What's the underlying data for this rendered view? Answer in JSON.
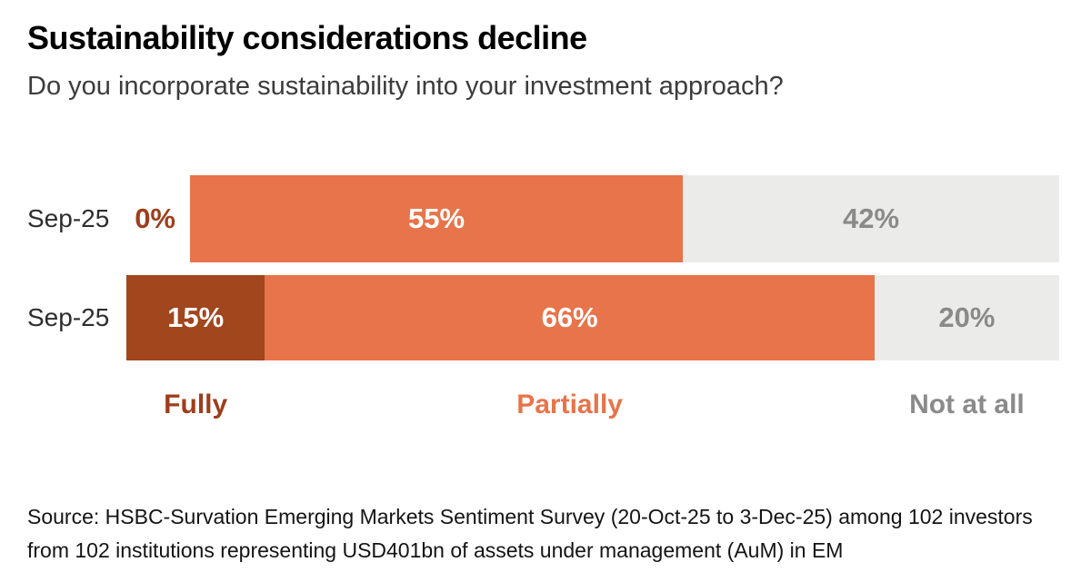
{
  "header": {
    "title": "Sustainability considerations decline",
    "subtitle": "Do you incorporate sustainability into your investment approach?"
  },
  "chart_data": {
    "type": "bar",
    "orientation": "horizontal-stacked",
    "axis": "none",
    "grid": false,
    "legend_position": "bottom",
    "categories": [
      "Sep-25",
      "Sep-25"
    ],
    "series": [
      {
        "name": "Fully",
        "values": [
          0,
          15
        ],
        "color": "#A2461E",
        "text_color": "#9E3E1C",
        "label_color": "#FFFFFF"
      },
      {
        "name": "Partially",
        "values": [
          55,
          66
        ],
        "color": "#E7744A",
        "text_color": "#E7744A",
        "label_color": "#FFFFFF"
      },
      {
        "name": "Not at all",
        "values": [
          42,
          20
        ],
        "color": "#EBEBEA",
        "text_color": "#8A8A8A",
        "label_color": "#8A8A8A"
      }
    ],
    "value_labels": [
      [
        "0%",
        "55%",
        "42%"
      ],
      [
        "15%",
        "66%",
        "20%"
      ]
    ],
    "legend": [
      "Fully",
      "Partially",
      "Not at all"
    ]
  },
  "source": {
    "line1": "Source: HSBC-Survation Emerging Markets Sentiment Survey (20-Oct-25 to 3-Dec-25) among 102 investors",
    "line2": "from 102 institutions representing USD401bn of assets under management (AuM) in EM"
  }
}
